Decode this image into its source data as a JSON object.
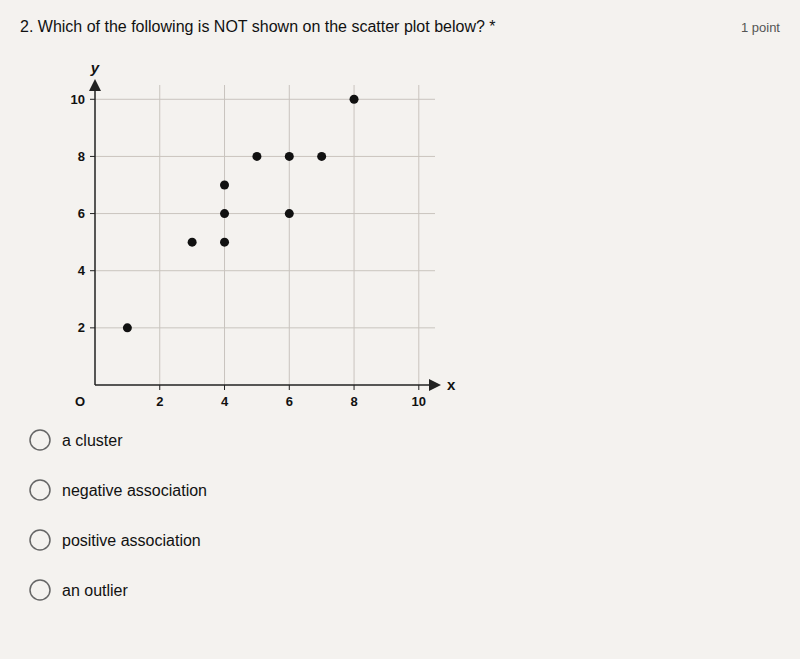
{
  "chart_data": {
    "type": "scatter",
    "title": "2. Which of the following is NOT shown on the scatter plot below? *",
    "annotations": [
      "1 point",
      "O"
    ],
    "x_label": "x",
    "y_label": "y",
    "x": [
      1,
      3,
      4,
      4,
      4,
      5,
      6,
      6,
      7,
      8
    ],
    "values": [
      2,
      5,
      5,
      6,
      7,
      8,
      6,
      8,
      8,
      10
    ],
    "color": "#111111",
    "xlim": [
      0,
      10.5
    ],
    "ylim": [
      0,
      10.5
    ],
    "xticks": [
      2,
      4,
      6,
      8,
      10
    ],
    "yticks": [
      2,
      4,
      6,
      8,
      10
    ],
    "grid": true,
    "choices": [
      "a cluster",
      "negative association",
      "positive association",
      "an outlier"
    ]
  }
}
